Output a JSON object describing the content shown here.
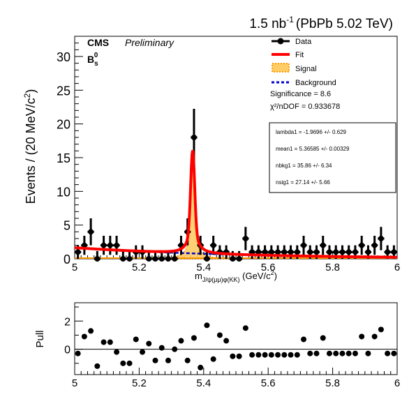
{
  "header": {
    "lumi_main": "1.5 nb",
    "lumi_sup": "-1",
    "lumi_tail": "(PbPb 5.02 TeV)"
  },
  "labels": {
    "cms": "CMS",
    "preliminary": "Preliminary",
    "particle_main": "B",
    "particle_sup": "0",
    "particle_sub": "s"
  },
  "legend": {
    "data": "Data",
    "fit": "Fit",
    "signal": "Signal",
    "background": "Background",
    "significance": "Significance = 8.6",
    "chi2": "χ²/nDOF = 0.933678"
  },
  "params": {
    "lambda": "lambda1 = -1.9696 +/- 0.629",
    "mean": "mean1 = 5.36585 +/- 0.00329",
    "nbkg": "nbkg1 = 35.86 +/- 6.34",
    "nsig": "nsig1 = 27.14 +/- 5.66"
  },
  "colors": {
    "fit": "#ff0000",
    "signal_fill": "#ffcc66",
    "signal_line": "#ff9900",
    "background": "#0000cc",
    "data": "#000000"
  },
  "chart_data": [
    {
      "type": "scatter",
      "name": "main",
      "xlabel": "m_{J/ψ(μμ)φ(KK)} (GeV/c²)",
      "ylabel": "Events / (20 MeV/c²)",
      "xlim": [
        5.0,
        6.0
      ],
      "ylim": [
        0,
        33
      ],
      "xticks": [
        "5",
        "5.2",
        "5.4",
        "5.6",
        "5.8",
        "6"
      ],
      "yticks": [
        "0",
        "5",
        "10",
        "15",
        "20",
        "25",
        "30"
      ],
      "bin_width": 0.02,
      "x": [
        5.01,
        5.03,
        5.05,
        5.07,
        5.09,
        5.11,
        5.13,
        5.15,
        5.17,
        5.19,
        5.21,
        5.23,
        5.25,
        5.27,
        5.29,
        5.31,
        5.33,
        5.35,
        5.37,
        5.39,
        5.41,
        5.43,
        5.45,
        5.47,
        5.49,
        5.51,
        5.53,
        5.55,
        5.57,
        5.59,
        5.61,
        5.63,
        5.65,
        5.67,
        5.69,
        5.71,
        5.73,
        5.75,
        5.77,
        5.79,
        5.81,
        5.83,
        5.85,
        5.87,
        5.89,
        5.91,
        5.93,
        5.95,
        5.97,
        5.99
      ],
      "y": [
        1,
        2,
        4,
        0,
        2,
        2,
        2,
        0,
        0,
        1,
        1,
        0,
        0,
        0,
        0,
        0,
        2,
        4,
        18,
        2,
        0,
        2,
        1,
        1,
        0,
        0,
        3,
        1,
        1,
        1,
        1,
        1,
        1,
        1,
        1,
        2,
        1,
        1,
        2,
        1,
        1,
        1,
        1,
        1,
        2,
        1,
        2,
        3,
        1,
        1
      ],
      "fit": {
        "lambda": -1.9696,
        "mean": 5.36585,
        "nbkg": 35.86,
        "nsig": 27.14
      },
      "series": [
        {
          "name": "Data"
        },
        {
          "name": "Fit"
        },
        {
          "name": "Signal"
        },
        {
          "name": "Background"
        }
      ]
    },
    {
      "type": "scatter",
      "name": "pull",
      "ylabel": "Pull",
      "xlim": [
        5.0,
        6.0
      ],
      "ylim": [
        -1.8,
        3.3
      ],
      "xticks": [
        "5",
        "5.2",
        "5.4",
        "5.6",
        "5.8",
        "6"
      ],
      "yticks": [
        "2",
        "0"
      ],
      "x": [
        5.01,
        5.03,
        5.05,
        5.07,
        5.09,
        5.11,
        5.13,
        5.15,
        5.17,
        5.19,
        5.21,
        5.23,
        5.25,
        5.27,
        5.29,
        5.31,
        5.33,
        5.35,
        5.37,
        5.39,
        5.41,
        5.43,
        5.45,
        5.47,
        5.49,
        5.51,
        5.53,
        5.55,
        5.57,
        5.59,
        5.61,
        5.63,
        5.65,
        5.67,
        5.69,
        5.71,
        5.73,
        5.75,
        5.77,
        5.79,
        5.81,
        5.83,
        5.85,
        5.87,
        5.89,
        5.91,
        5.93,
        5.95,
        5.97,
        5.99
      ],
      "y": [
        -0.3,
        0.9,
        1.3,
        -1.2,
        0.5,
        0.5,
        -0.2,
        -1.0,
        -1.0,
        0.7,
        -0.2,
        0.4,
        -0.8,
        0.1,
        -0.8,
        0.0,
        0.6,
        -0.8,
        0.8,
        -1.3,
        1.7,
        -0.7,
        1.0,
        0.6,
        -0.5,
        -0.5,
        1.5,
        -0.4,
        -0.4,
        -0.4,
        -0.4,
        -0.4,
        -0.4,
        -0.4,
        -0.4,
        0.7,
        -0.3,
        -0.3,
        0.8,
        -0.3,
        -0.3,
        -0.3,
        -0.3,
        -0.3,
        0.9,
        -0.3,
        0.9,
        1.4,
        -0.3,
        -0.3
      ]
    }
  ]
}
